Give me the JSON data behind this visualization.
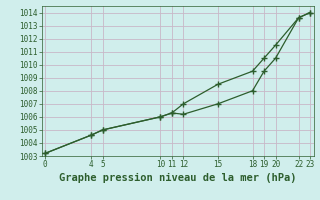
{
  "background_color": "#d0eeec",
  "grid_color": "#c8b8c8",
  "line_color": "#2d5e2d",
  "title": "Graphe pression niveau de la mer (hPa)",
  "ylim": [
    1003,
    1014.5
  ],
  "yticks": [
    1003,
    1004,
    1005,
    1006,
    1007,
    1008,
    1009,
    1010,
    1011,
    1012,
    1013,
    1014
  ],
  "xticks": [
    0,
    4,
    5,
    10,
    11,
    12,
    15,
    18,
    19,
    20,
    22,
    23
  ],
  "xlim": [
    -0.3,
    23.3
  ],
  "line1_x": [
    0,
    4,
    5,
    10,
    11,
    12,
    15,
    18,
    19,
    20,
    22,
    23
  ],
  "line1_y": [
    1003.2,
    1004.6,
    1005.0,
    1006.0,
    1006.3,
    1007.0,
    1008.5,
    1009.5,
    1010.5,
    1011.5,
    1013.6,
    1014.0
  ],
  "line2_x": [
    0,
    4,
    5,
    10,
    11,
    12,
    15,
    18,
    19,
    20,
    22,
    23
  ],
  "line2_y": [
    1003.2,
    1004.6,
    1005.0,
    1006.0,
    1006.3,
    1006.2,
    1007.0,
    1008.0,
    1009.5,
    1010.5,
    1013.6,
    1014.0
  ],
  "markersize": 4,
  "linewidth": 0.9,
  "title_fontsize": 7.5,
  "tick_fontsize": 5.5
}
